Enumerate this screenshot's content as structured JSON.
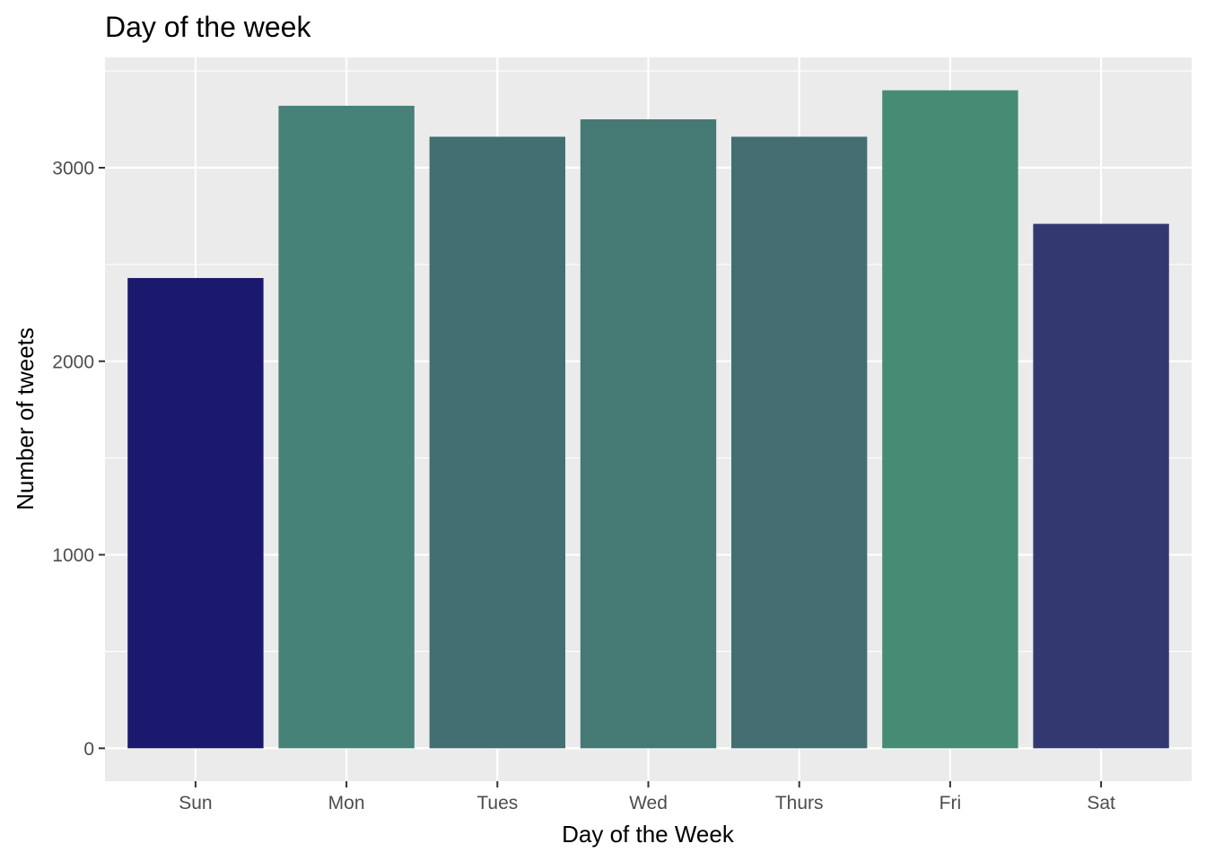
{
  "chart_data": {
    "type": "bar",
    "title": "Day of the week",
    "xlabel": "Day of the Week",
    "ylabel": "Number of tweets",
    "categories": [
      "Sun",
      "Mon",
      "Tues",
      "Wed",
      "Thurs",
      "Fri",
      "Sat"
    ],
    "values": [
      2430,
      3320,
      3160,
      3250,
      3160,
      3400,
      2710
    ],
    "bar_colors": [
      "#1b196d",
      "#468278",
      "#446f72",
      "#447974",
      "#446e72",
      "#468b74",
      "#333970"
    ],
    "yticks": [
      0,
      1000,
      2000,
      3000
    ],
    "ylim": [
      -170,
      3570
    ],
    "grid": true,
    "legend": "none",
    "panel_background": "#ebebeb",
    "gridline_color": "#ffffff"
  }
}
